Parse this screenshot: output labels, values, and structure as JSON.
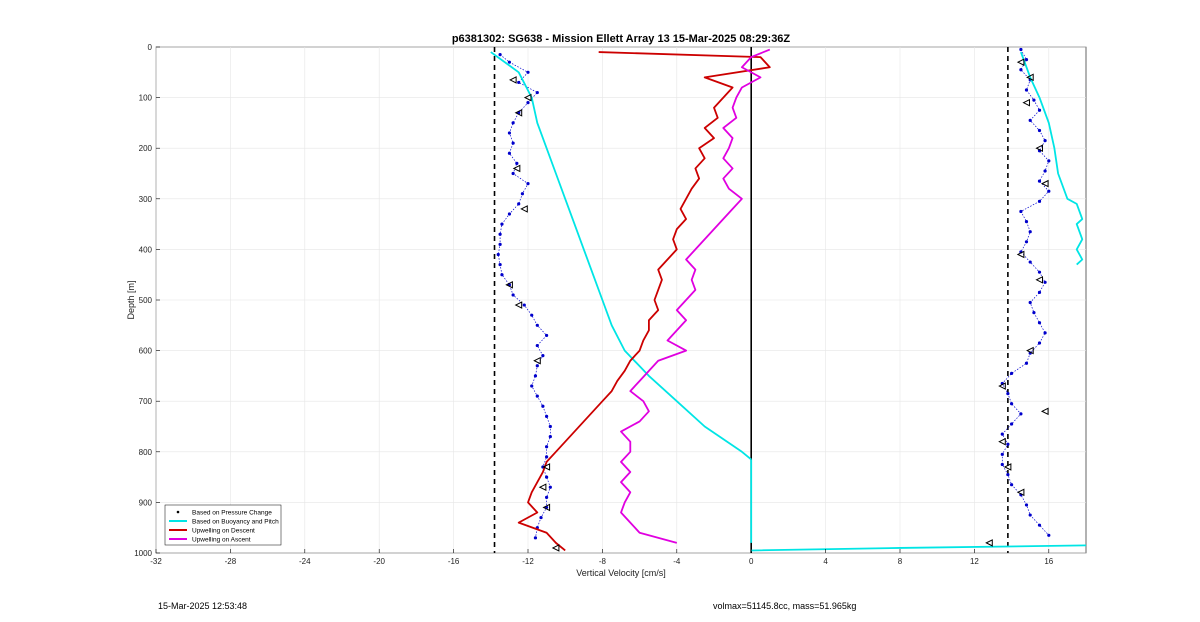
{
  "footer": {
    "timestamp": "15-Mar-2025 12:53:48",
    "info": "volmax=51145.8cc, mass=51.965kg"
  },
  "chart_data": {
    "type": "line",
    "title": "p6381302: SG638 - Mission Ellett Array 13 15-Mar-2025 08:29:36Z",
    "xlabel": "Vertical Velocity [cm/s]",
    "ylabel": "Depth [m]",
    "xlim": [
      -32,
      18
    ],
    "ylim": [
      0,
      1000
    ],
    "y_reversed": true,
    "grid": true,
    "x_ticks": [
      -32,
      -28,
      -24,
      -20,
      -16,
      -12,
      -8,
      -4,
      0,
      4,
      8,
      12,
      16
    ],
    "y_ticks": [
      0,
      100,
      200,
      300,
      400,
      500,
      600,
      700,
      800,
      900,
      1000
    ],
    "reference_lines": [
      {
        "x": -13.8,
        "style": "dashed"
      },
      {
        "x": 13.8,
        "style": "dashed"
      },
      {
        "x": 0,
        "style": "solid",
        "depth_range": [
          0,
          1000
        ]
      }
    ],
    "legend_position": "bottom-left",
    "colors": {
      "pressure": "#0000cc",
      "buoyancy": "#00e5e5",
      "descent": "#cc0000",
      "ascent": "#e000e0",
      "marker": "#000000"
    },
    "series": [
      {
        "name": "Based on Pressure Change",
        "style": "dots",
        "segments": [
          {
            "depth": [
              15,
              30,
              50,
              70,
              90,
              110,
              130,
              150,
              170,
              190,
              210,
              230,
              250,
              270,
              290,
              310,
              330,
              350,
              370,
              390,
              410,
              430,
              450,
              470,
              490,
              510,
              530,
              550,
              570,
              590,
              610,
              630,
              650,
              670,
              690,
              710,
              730,
              750,
              770,
              790,
              810,
              830,
              850,
              870,
              890,
              910,
              930,
              950,
              970
            ],
            "x": [
              -13.5,
              -13.0,
              -12.0,
              -12.5,
              -11.5,
              -12.0,
              -12.5,
              -12.8,
              -13.0,
              -12.8,
              -13.0,
              -12.6,
              -12.8,
              -12.0,
              -12.3,
              -12.5,
              -13.0,
              -13.4,
              -13.5,
              -13.5,
              -13.6,
              -13.5,
              -13.4,
              -13.0,
              -12.8,
              -12.2,
              -11.8,
              -11.5,
              -11.0,
              -11.5,
              -11.2,
              -11.5,
              -11.6,
              -11.8,
              -11.5,
              -11.2,
              -11.0,
              -10.8,
              -10.8,
              -11.0,
              -11.0,
              -11.2,
              -11.0,
              -10.8,
              -11.0,
              -11.0,
              -11.3,
              -11.5,
              -11.6
            ]
          },
          {
            "depth": [
              5,
              25,
              45,
              65,
              85,
              105,
              125,
              145,
              165,
              185,
              205,
              225,
              245,
              265,
              285,
              305,
              325,
              345,
              365,
              385,
              405,
              425,
              445,
              465,
              485,
              505,
              525,
              545,
              565,
              585,
              605,
              625,
              645,
              665,
              685,
              705,
              725,
              745,
              765,
              785,
              805,
              825,
              845,
              865,
              885,
              905,
              925,
              945,
              965
            ],
            "x": [
              14.5,
              14.8,
              14.5,
              15.0,
              14.8,
              15.2,
              15.5,
              15.0,
              15.5,
              15.8,
              15.5,
              16.0,
              15.8,
              15.5,
              16.0,
              15.5,
              14.5,
              14.8,
              15.0,
              14.8,
              14.5,
              15.0,
              15.5,
              15.8,
              15.5,
              15.0,
              15.2,
              15.5,
              15.8,
              15.5,
              15.0,
              14.8,
              14.0,
              13.5,
              13.8,
              14.0,
              14.5,
              14.0,
              13.5,
              13.8,
              13.5,
              13.5,
              13.8,
              14.0,
              14.5,
              14.8,
              15.0,
              15.5,
              16.0
            ]
          }
        ]
      },
      {
        "name": "Based on Buoyancy and Pitch",
        "style": "line",
        "segments": [
          {
            "depth": [
              10,
              50,
              100,
              150,
              200,
              250,
              300,
              350,
              400,
              450,
              500,
              550,
              600,
              650,
              700,
              750,
              800,
              815
            ],
            "x": [
              -14.0,
              -12.5,
              -11.8,
              -11.5,
              -11.0,
              -10.5,
              -10.0,
              -9.5,
              -9.0,
              -8.5,
              -8.0,
              -7.5,
              -6.8,
              -5.5,
              -4.0,
              -2.5,
              -0.5,
              0
            ]
          },
          {
            "depth": [
              815,
              900,
              980
            ],
            "x": [
              0,
              0,
              0
            ]
          },
          {
            "depth": [
              985,
              990,
              995
            ],
            "x": [
              18,
              8,
              0
            ]
          },
          {
            "depth": [
              10,
              60,
              100,
              150,
              200,
              250,
              300,
              310,
              340,
              350,
              380,
              400,
              420,
              430
            ],
            "x": [
              14.5,
              15.0,
              15.5,
              16.0,
              16.3,
              16.5,
              17.0,
              17.5,
              17.8,
              17.5,
              17.8,
              17.5,
              17.8,
              17.5
            ]
          }
        ]
      },
      {
        "name": "Upwelling on Descent",
        "style": "line",
        "segments": [
          {
            "depth": [
              10,
              20,
              40,
              60,
              80,
              100,
              120,
              140,
              160,
              180,
              200,
              220,
              240,
              260,
              280,
              300,
              320,
              340,
              360,
              380,
              400,
              420,
              440,
              460,
              480,
              500,
              520,
              540,
              560,
              580,
              600,
              620,
              640,
              660,
              680,
              700,
              720,
              740,
              760,
              780,
              800,
              820,
              840,
              860,
              880,
              900,
              920,
              940,
              960,
              980,
              995
            ],
            "x": [
              -8.2,
              0.5,
              1.0,
              -2.5,
              -1.0,
              -1.5,
              -2.0,
              -1.8,
              -2.5,
              -2.0,
              -2.8,
              -2.5,
              -3.0,
              -2.8,
              -3.2,
              -3.5,
              -3.8,
              -3.5,
              -4.0,
              -4.2,
              -4.0,
              -4.5,
              -5.0,
              -4.8,
              -5.0,
              -5.2,
              -5.0,
              -5.5,
              -5.5,
              -5.8,
              -6.0,
              -6.5,
              -6.8,
              -7.2,
              -7.5,
              -8.0,
              -8.5,
              -9.0,
              -9.5,
              -10.0,
              -10.5,
              -11.0,
              -11.2,
              -11.5,
              -11.8,
              -12.0,
              -11.5,
              -12.5,
              -11.0,
              -10.5,
              -10.0
            ]
          }
        ]
      },
      {
        "name": "Upwelling on Ascent",
        "style": "line",
        "segments": [
          {
            "depth": [
              5,
              20,
              40,
              60,
              80,
              100,
              120,
              140,
              160,
              180,
              200,
              220,
              240,
              260,
              280,
              300,
              320,
              340,
              360,
              380,
              400,
              420,
              440,
              460,
              480,
              500,
              520,
              540,
              560,
              580,
              600,
              620,
              640,
              660,
              680,
              700,
              720,
              740,
              760,
              780,
              800,
              820,
              840,
              860,
              880,
              900,
              920,
              940,
              960,
              980
            ],
            "x": [
              1.0,
              0.0,
              -0.5,
              0.5,
              -0.5,
              -0.8,
              -1.0,
              -0.8,
              -1.5,
              -1.0,
              -1.2,
              -1.5,
              -1.0,
              -1.5,
              -1.2,
              -0.5,
              -1.0,
              -1.5,
              -2.0,
              -2.5,
              -3.0,
              -3.5,
              -3.0,
              -3.2,
              -3.0,
              -3.5,
              -4.0,
              -3.5,
              -4.0,
              -4.5,
              -3.5,
              -5.0,
              -5.5,
              -6.0,
              -6.5,
              -5.8,
              -5.5,
              -6.0,
              -7.0,
              -6.5,
              -6.5,
              -7.0,
              -6.5,
              -7.0,
              -6.5,
              -6.8,
              -7.0,
              -6.5,
              -6.0,
              -4.0
            ]
          }
        ]
      }
    ],
    "markers": {
      "style": "triangle-open",
      "points": [
        {
          "x": -12.8,
          "y": 65
        },
        {
          "x": -12.0,
          "y": 100
        },
        {
          "x": -12.5,
          "y": 130
        },
        {
          "x": -12.6,
          "y": 240
        },
        {
          "x": -12.2,
          "y": 320
        },
        {
          "x": -13.0,
          "y": 470
        },
        {
          "x": -12.5,
          "y": 510
        },
        {
          "x": -11.5,
          "y": 620
        },
        {
          "x": -11.0,
          "y": 830
        },
        {
          "x": -11.2,
          "y": 870
        },
        {
          "x": -11.0,
          "y": 910
        },
        {
          "x": -10.5,
          "y": 990
        },
        {
          "x": 14.5,
          "y": 30
        },
        {
          "x": 15.0,
          "y": 60
        },
        {
          "x": 14.8,
          "y": 110
        },
        {
          "x": 15.5,
          "y": 200
        },
        {
          "x": 15.8,
          "y": 270
        },
        {
          "x": 14.5,
          "y": 410
        },
        {
          "x": 15.5,
          "y": 460
        },
        {
          "x": 15.0,
          "y": 600
        },
        {
          "x": 13.5,
          "y": 670
        },
        {
          "x": 15.8,
          "y": 720
        },
        {
          "x": 13.5,
          "y": 780
        },
        {
          "x": 13.8,
          "y": 830
        },
        {
          "x": 14.5,
          "y": 880
        },
        {
          "x": 12.8,
          "y": 980
        }
      ]
    }
  }
}
